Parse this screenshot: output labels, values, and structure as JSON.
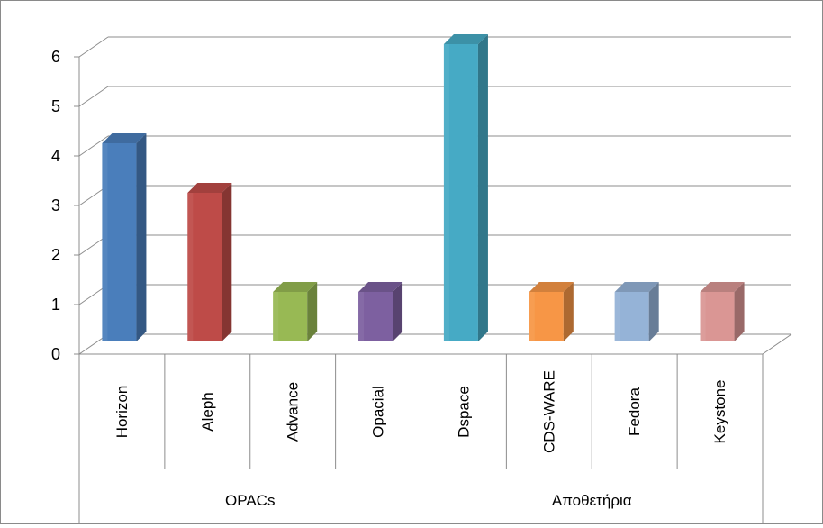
{
  "chart_data": {
    "type": "bar",
    "style": "3d-clustered-column",
    "groups": [
      {
        "label": "OPACs",
        "categories": [
          "Horizon",
          "Aleph",
          "Advance",
          "Opacial"
        ]
      },
      {
        "label": "Αποθετήρια",
        "categories": [
          "Dspace",
          "CDS-WARE",
          "Fedora",
          "Keystone"
        ]
      }
    ],
    "categories": [
      "Horizon",
      "Aleph",
      "Advance",
      "Opacial",
      "Dspace",
      "CDS-WARE",
      "Fedora",
      "Keystone"
    ],
    "values": [
      4,
      3,
      1,
      1,
      6,
      1,
      1,
      1
    ],
    "colors": [
      "#4a7ebb",
      "#be4b48",
      "#98b954",
      "#7d60a0",
      "#46aac5",
      "#f79646",
      "#95b3d7",
      "#da9694"
    ],
    "yticks": [
      "0",
      "1",
      "2",
      "3",
      "4",
      "5",
      "6"
    ],
    "ylim": [
      0,
      6
    ],
    "grid": true,
    "legend": "none"
  }
}
